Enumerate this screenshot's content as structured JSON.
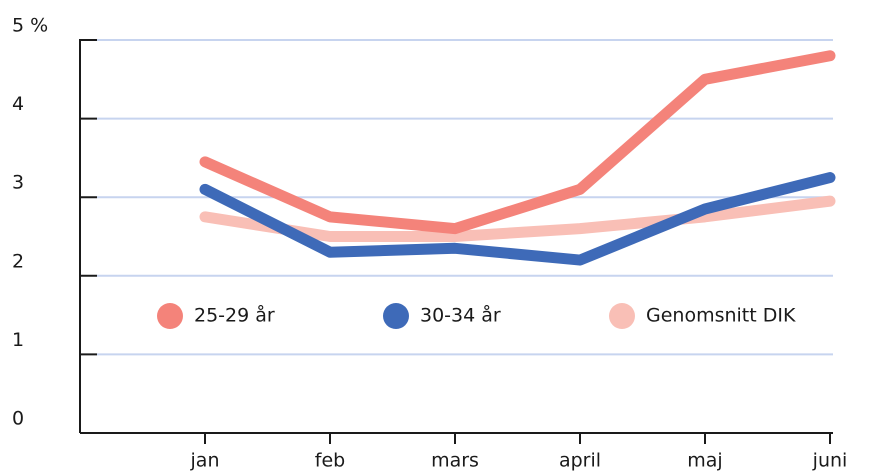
{
  "chart_data": {
    "type": "line",
    "categories": [
      "jan",
      "feb",
      "mars",
      "april",
      "maj",
      "juni"
    ],
    "series": [
      {
        "name": "25-29 år",
        "color": "#f4837a",
        "values": [
          3.45,
          2.75,
          2.6,
          3.1,
          4.5,
          4.8
        ]
      },
      {
        "name": "30-34 år",
        "color": "#3e6ab8",
        "values": [
          3.1,
          2.3,
          2.35,
          2.2,
          2.85,
          3.25
        ]
      },
      {
        "name": "Genomsnitt DIK",
        "color": "#f9bfb6",
        "values": [
          2.75,
          2.5,
          2.5,
          2.6,
          2.75,
          2.95
        ]
      }
    ],
    "ylim": [
      0,
      5
    ],
    "yticks": [
      0,
      1,
      2,
      3,
      4,
      {
        "value": 5,
        "label": "5 %"
      }
    ],
    "grid": true
  }
}
